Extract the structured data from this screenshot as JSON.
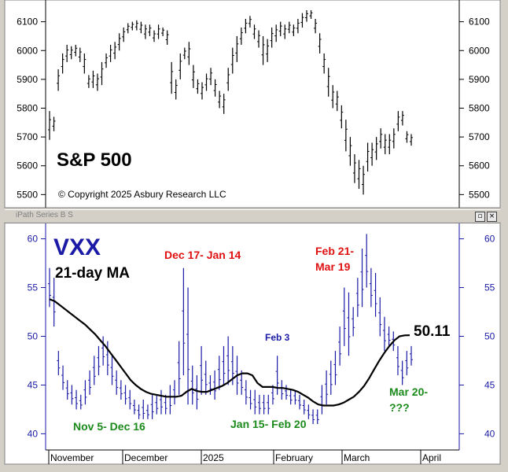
{
  "chart_data": [
    {
      "type": "ohlc",
      "title": "S&P 500",
      "copyright": "© Copyright 2025 Asbury Research LLC",
      "y_ticks": [
        "6100",
        "6000",
        "5900",
        "5800",
        "5700",
        "5600",
        "5500"
      ],
      "ylim": [
        5460,
        6170
      ],
      "grid": false,
      "bar_color": "#000000",
      "bars": [
        [
          5690,
          5790
        ],
        [
          5720,
          5770
        ],
        [
          5860,
          5935
        ],
        [
          5920,
          5990
        ],
        [
          5960,
          6020
        ],
        [
          5970,
          6015
        ],
        [
          5980,
          6020
        ],
        [
          5960,
          6010
        ],
        [
          5920,
          5990
        ],
        [
          5870,
          5915
        ],
        [
          5870,
          5930
        ],
        [
          5860,
          5920
        ],
        [
          5880,
          5960
        ],
        [
          5940,
          5990
        ],
        [
          5960,
          6020
        ],
        [
          5970,
          6030
        ],
        [
          6000,
          6060
        ],
        [
          6030,
          6080
        ],
        [
          6060,
          6095
        ],
        [
          6070,
          6100
        ],
        [
          6070,
          6105
        ],
        [
          6060,
          6100
        ],
        [
          6040,
          6090
        ],
        [
          6050,
          6090
        ],
        [
          6030,
          6070
        ],
        [
          6040,
          6090
        ],
        [
          6050,
          6080
        ],
        [
          6020,
          6070
        ],
        [
          5850,
          5960
        ],
        [
          5830,
          5900
        ],
        [
          5900,
          5990
        ],
        [
          5970,
          6010
        ],
        [
          5950,
          6030
        ],
        [
          5870,
          5950
        ],
        [
          5850,
          5900
        ],
        [
          5830,
          5890
        ],
        [
          5860,
          5920
        ],
        [
          5880,
          5940
        ],
        [
          5840,
          5900
        ],
        [
          5800,
          5860
        ],
        [
          5780,
          5850
        ],
        [
          5860,
          5940
        ],
        [
          5920,
          6010
        ],
        [
          5960,
          6050
        ],
        [
          6020,
          6080
        ],
        [
          6060,
          6110
        ],
        [
          6080,
          6120
        ],
        [
          6040,
          6090
        ],
        [
          6010,
          6070
        ],
        [
          5950,
          6050
        ],
        [
          5960,
          6040
        ],
        [
          6010,
          6080
        ],
        [
          6030,
          6090
        ],
        [
          6050,
          6100
        ],
        [
          6040,
          6090
        ],
        [
          6060,
          6100
        ],
        [
          6050,
          6090
        ],
        [
          6060,
          6110
        ],
        [
          6080,
          6130
        ],
        [
          6100,
          6140
        ],
        [
          6110,
          6140
        ],
        [
          6060,
          6110
        ],
        [
          5990,
          6060
        ],
        [
          5920,
          5990
        ],
        [
          5840,
          5940
        ],
        [
          5800,
          5880
        ],
        [
          5790,
          5860
        ],
        [
          5730,
          5810
        ],
        [
          5650,
          5760
        ],
        [
          5600,
          5700
        ],
        [
          5540,
          5640
        ],
        [
          5520,
          5620
        ],
        [
          5500,
          5600
        ],
        [
          5580,
          5680
        ],
        [
          5600,
          5680
        ],
        [
          5620,
          5700
        ],
        [
          5660,
          5730
        ],
        [
          5640,
          5710
        ],
        [
          5640,
          5710
        ],
        [
          5660,
          5730
        ],
        [
          5720,
          5790
        ],
        [
          5740,
          5790
        ],
        [
          5680,
          5720
        ],
        [
          5670,
          5710
        ]
      ]
    },
    {
      "type": "ohlc",
      "title": "VXX",
      "ma_label": "21-day MA",
      "last_value_label": "50.11",
      "y_ticks": [
        "60",
        "55",
        "50",
        "45",
        "40"
      ],
      "ylim": [
        38.5,
        61.5
      ],
      "x_labels": [
        "November",
        "December",
        "2025",
        "February",
        "March",
        "April"
      ],
      "grid": false,
      "bar_color": "#1a1aa6",
      "ma_color": "#000000",
      "annotations": [
        {
          "text": "Dec 17- Jan 14",
          "color": "#e01010"
        },
        {
          "text": "Feb 21-",
          "color": "#e01010"
        },
        {
          "text": "Mar 19",
          "color": "#e01010"
        },
        {
          "text": "Feb 3",
          "color": "#1a1aa6"
        },
        {
          "text": "Nov 5- Dec 16",
          "color": "#1a8a1a"
        },
        {
          "text": "Jan 15- Feb 20",
          "color": "#1a8a1a"
        },
        {
          "text": "Mar 20-",
          "color": "#1a8a1a"
        },
        {
          "text": "???",
          "color": "#1a8a1a"
        }
      ],
      "bars": [
        [
          53,
          57
        ],
        [
          51,
          56
        ],
        [
          46,
          48.5
        ],
        [
          44.5,
          47
        ],
        [
          43.5,
          45.5
        ],
        [
          43,
          45
        ],
        [
          42.5,
          44.5
        ],
        [
          42.5,
          44
        ],
        [
          43,
          45.5
        ],
        [
          44,
          46.5
        ],
        [
          45,
          48
        ],
        [
          46,
          49
        ],
        [
          47,
          50
        ],
        [
          46,
          49.5
        ],
        [
          45,
          48
        ],
        [
          44,
          46.5
        ],
        [
          43.5,
          45.5
        ],
        [
          43,
          45
        ],
        [
          42.5,
          44.5
        ],
        [
          42,
          43.5
        ],
        [
          41.5,
          43
        ],
        [
          41.5,
          43.5
        ],
        [
          41.5,
          43
        ],
        [
          41.5,
          44
        ],
        [
          42,
          44
        ],
        [
          42,
          44.5
        ],
        [
          42,
          44
        ],
        [
          42,
          45
        ],
        [
          43,
          45.5
        ],
        [
          44,
          49.5
        ],
        [
          46,
          57
        ],
        [
          43,
          55
        ],
        [
          43,
          47
        ],
        [
          42.5,
          46
        ],
        [
          44,
          49
        ],
        [
          44,
          47.5
        ],
        [
          44,
          46
        ],
        [
          43.5,
          46.5
        ],
        [
          44.5,
          48
        ],
        [
          45,
          49
        ],
        [
          45,
          50
        ],
        [
          45,
          49
        ],
        [
          44,
          48
        ],
        [
          44,
          46.5
        ],
        [
          43,
          45.5
        ],
        [
          42.5,
          44.5
        ],
        [
          42,
          44.5
        ],
        [
          42,
          44
        ],
        [
          42,
          44
        ],
        [
          42,
          44
        ],
        [
          43,
          45
        ],
        [
          44,
          48
        ],
        [
          43.5,
          45.5
        ],
        [
          43.5,
          45
        ],
        [
          43,
          44.5
        ],
        [
          43,
          44.5
        ],
        [
          42.5,
          44
        ],
        [
          42,
          43.5
        ],
        [
          41.5,
          43
        ],
        [
          41,
          42.5
        ],
        [
          41,
          42.5
        ],
        [
          42,
          45
        ],
        [
          43,
          46.5
        ],
        [
          44,
          47.5
        ],
        [
          45,
          48.5
        ],
        [
          47,
          51
        ],
        [
          49,
          55
        ],
        [
          48,
          54.5
        ],
        [
          50,
          53
        ],
        [
          52,
          56
        ],
        [
          53,
          59
        ],
        [
          55,
          60.5
        ],
        [
          53,
          57
        ],
        [
          52,
          56.5
        ],
        [
          50,
          54
        ],
        [
          48.5,
          52
        ],
        [
          49,
          51
        ],
        [
          48.5,
          50.5
        ],
        [
          46,
          49
        ],
        [
          45,
          47.5
        ],
        [
          46,
          48.5
        ],
        [
          47,
          49
        ]
      ],
      "ma": [
        53.8,
        53.6,
        53.2,
        52.8,
        52.4,
        52.0,
        51.6,
        51.2,
        50.7,
        50.2,
        49.6,
        49.0,
        48.3,
        47.6,
        46.9,
        46.2,
        45.5,
        45.0,
        44.6,
        44.3,
        44.1,
        44.0,
        43.9,
        43.8,
        43.8,
        43.8,
        43.9,
        44.3,
        44.6,
        44.4,
        44.3,
        44.3,
        44.5,
        44.7,
        44.9,
        45.2,
        45.6,
        46.0,
        46.2,
        46.2,
        46.0,
        45.2,
        44.8,
        44.8,
        44.8,
        44.7,
        44.7,
        44.6,
        44.5,
        44.3,
        44.0,
        43.7,
        43.3,
        43.0,
        42.9,
        42.9,
        42.9,
        43.0,
        43.2,
        43.5,
        43.8,
        44.3,
        44.9,
        45.7,
        46.6,
        47.5,
        48.3,
        49.0,
        49.6,
        50.0,
        50.1,
        50.11
      ]
    }
  ]
}
